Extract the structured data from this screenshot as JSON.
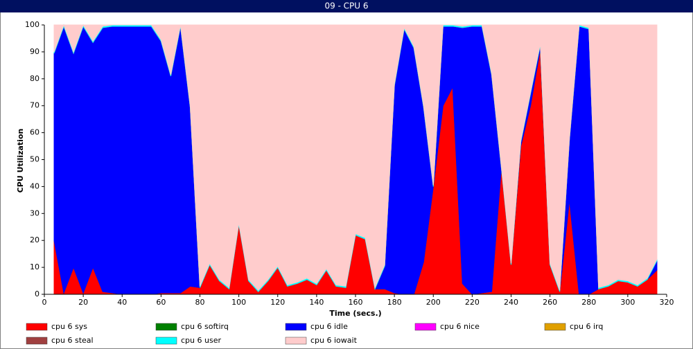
{
  "chart_data": {
    "type": "stacked_area",
    "title": "09 - CPU 6",
    "x_label": "Time (secs.)",
    "y_label": "CPU Utilization",
    "xlim": [
      0,
      320
    ],
    "ylim": [
      0,
      100
    ],
    "xticks": [
      0,
      20,
      40,
      60,
      80,
      100,
      120,
      140,
      160,
      180,
      200,
      220,
      240,
      260,
      280,
      300,
      320
    ],
    "yticks": [
      0,
      10,
      20,
      30,
      40,
      50,
      60,
      70,
      80,
      90,
      100
    ],
    "x": [
      5,
      10,
      15,
      20,
      25,
      30,
      35,
      40,
      45,
      50,
      55,
      60,
      65,
      70,
      75,
      80,
      85,
      90,
      95,
      100,
      105,
      110,
      115,
      120,
      125,
      130,
      135,
      140,
      145,
      150,
      155,
      160,
      165,
      170,
      175,
      180,
      185,
      190,
      195,
      200,
      205,
      210,
      215,
      220,
      225,
      230,
      235,
      240,
      245,
      250,
      255,
      260,
      265,
      270,
      275,
      280,
      285,
      290,
      295,
      300,
      305,
      310,
      315
    ],
    "series": [
      {
        "name": "cpu 6 sys",
        "color": "#ff0000",
        "values": [
          20,
          0.5,
          10,
          0.5,
          10,
          1,
          0.5,
          0,
          0,
          0,
          0,
          0.5,
          0.5,
          0.5,
          3,
          2.5,
          11,
          5,
          2,
          26,
          5,
          1,
          5,
          10,
          3,
          4,
          5.5,
          3.5,
          9,
          3,
          2.5,
          22,
          20.5,
          2,
          2,
          0.5,
          0,
          0,
          12,
          40,
          70,
          77,
          4,
          0,
          0.5,
          1,
          47,
          11,
          55,
          70,
          91,
          11,
          1,
          35,
          0,
          0,
          2,
          3,
          5,
          4.5,
          3,
          5.5,
          9
        ]
      },
      {
        "name": "cpu 6 softirq",
        "color": "#008000",
        "values": [
          0,
          0,
          0,
          0,
          0,
          0,
          0,
          0,
          0,
          0,
          0,
          0,
          0,
          0,
          0,
          0,
          0,
          0,
          0,
          0,
          0,
          0,
          0,
          0,
          0,
          0,
          0,
          0,
          0,
          0,
          0,
          0,
          0,
          0,
          0,
          0,
          0,
          0,
          0,
          0,
          0,
          0,
          0,
          0,
          0,
          0,
          0,
          0,
          0,
          0,
          0,
          0,
          0,
          0,
          0,
          0,
          0,
          0,
          0,
          0,
          0,
          0,
          0
        ]
      },
      {
        "name": "cpu 6 idle",
        "color": "#0000ff",
        "values": [
          69.5,
          99,
          79.5,
          99,
          83.5,
          98,
          99,
          99.5,
          99.5,
          99.5,
          99.5,
          93.5,
          80.5,
          99,
          66.5,
          0,
          0,
          0,
          0,
          0,
          0,
          0,
          0,
          0,
          0,
          0,
          0,
          0,
          0,
          0,
          0,
          0,
          0,
          0,
          8.5,
          77,
          98.5,
          91.5,
          57.5,
          0,
          29.5,
          22.5,
          95,
          99.5,
          99,
          80.5,
          0,
          0,
          1.5,
          4.5,
          1.5,
          0,
          0,
          22.5,
          99.5,
          98.5,
          0,
          0,
          0,
          0,
          0,
          0,
          3.5
        ]
      },
      {
        "name": "cpu 6 nice",
        "color": "#ff00ff",
        "values": [
          0,
          0,
          0,
          0,
          0,
          0,
          0,
          0,
          0,
          0,
          0,
          0,
          0,
          0,
          0,
          0,
          0,
          0,
          0,
          0,
          0,
          0,
          0,
          0,
          0,
          0,
          0,
          0,
          0,
          0,
          0,
          0,
          0,
          0,
          0,
          0,
          0,
          0,
          0,
          0,
          0,
          0,
          0,
          0,
          0,
          0,
          0,
          0,
          0,
          0,
          0,
          0,
          0,
          0,
          0,
          0,
          0,
          0,
          0,
          0,
          0,
          0,
          0
        ]
      },
      {
        "name": "cpu 6 irq",
        "color": "#e0a000",
        "values": [
          0,
          0,
          0,
          0,
          0,
          0,
          0,
          0,
          0,
          0,
          0,
          0,
          0,
          0,
          0,
          0,
          0,
          0,
          0,
          0,
          0,
          0,
          0,
          0,
          0,
          0,
          0,
          0,
          0,
          0,
          0,
          0,
          0,
          0,
          0,
          0,
          0,
          0,
          0,
          0,
          0,
          0,
          0,
          0,
          0,
          0,
          0,
          0,
          0,
          0,
          0,
          0,
          0,
          0,
          0,
          0,
          0,
          0,
          0,
          0,
          0,
          0,
          0
        ]
      },
      {
        "name": "cpu 6 steal",
        "color": "#a04040",
        "values": [
          0,
          0,
          0,
          0,
          0,
          0,
          0,
          0,
          0,
          0,
          0,
          0,
          0,
          0,
          0,
          0,
          0,
          0,
          0,
          0,
          0,
          0,
          0,
          0,
          0,
          0,
          0,
          0,
          0,
          0,
          0,
          0,
          0,
          0,
          0,
          0,
          0,
          0,
          0,
          0,
          0,
          0,
          0,
          0,
          0,
          0,
          0,
          0,
          0,
          0,
          0,
          0,
          0,
          0,
          0,
          0,
          0,
          0,
          0,
          0,
          0,
          0,
          0
        ]
      },
      {
        "name": "cpu 6 user",
        "color": "#00ffff",
        "values": [
          0.5,
          0.5,
          0.5,
          0.5,
          0.5,
          0.5,
          0.5,
          0.5,
          0.5,
          0.5,
          0.5,
          0.5,
          0.5,
          0.5,
          0.5,
          0.5,
          0.5,
          0.5,
          0.5,
          0.5,
          0.5,
          0.5,
          0.5,
          0.5,
          0.5,
          0.5,
          0.5,
          0.5,
          0.5,
          0.5,
          0.5,
          0.5,
          0.5,
          0.5,
          0.5,
          0.5,
          0.5,
          0.5,
          0.5,
          0.5,
          0.5,
          0.5,
          0.5,
          0.5,
          0.5,
          0.5,
          0.5,
          0.5,
          0.5,
          0.5,
          0.5,
          0.5,
          0.5,
          0.5,
          0.5,
          0.5,
          0.5,
          0.5,
          0.5,
          0.5,
          0.5,
          0.5,
          0.5
        ]
      },
      {
        "name": "cpu 6 iowait",
        "color": "#ffcccc",
        "values": [
          10,
          0,
          10,
          0,
          6,
          0.5,
          0,
          0,
          0,
          0,
          0,
          5.5,
          18.5,
          0,
          30,
          97,
          88.5,
          94.5,
          97.5,
          73.5,
          94.5,
          98.5,
          94.5,
          89.5,
          96.5,
          95.5,
          94,
          96,
          90.5,
          96.5,
          97,
          77.5,
          79,
          97.5,
          89,
          22,
          1,
          8,
          30,
          59.5,
          0,
          0,
          0.5,
          0,
          0,
          18,
          52.5,
          88.5,
          43,
          25,
          7,
          88.5,
          98.5,
          42,
          0,
          1,
          97.5,
          96.5,
          94.5,
          95,
          96.5,
          94,
          87
        ]
      }
    ]
  }
}
